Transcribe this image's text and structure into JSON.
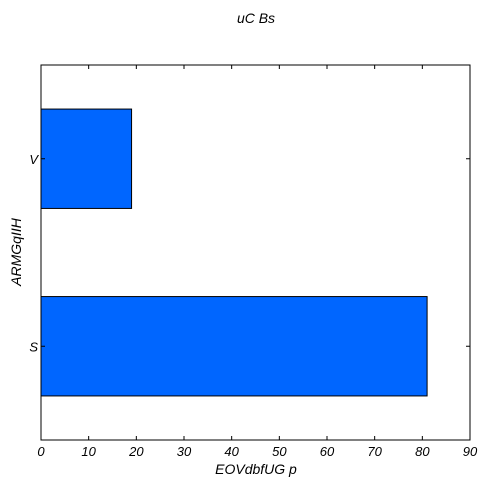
{
  "chart_data": {
    "type": "bar",
    "orientation": "horizontal",
    "title": "uC  Bs",
    "xlabel": "EOVdbfUG p",
    "ylabel": "ARMGqIIH",
    "categories": [
      "S",
      "V"
    ],
    "values": [
      81,
      19
    ],
    "xlim": [
      0,
      90
    ],
    "xticks": [
      "0",
      "10",
      "20",
      "30",
      "40",
      "50",
      "60",
      "70",
      "80",
      "90"
    ],
    "grid": false,
    "bar_color": "#0066ff"
  }
}
